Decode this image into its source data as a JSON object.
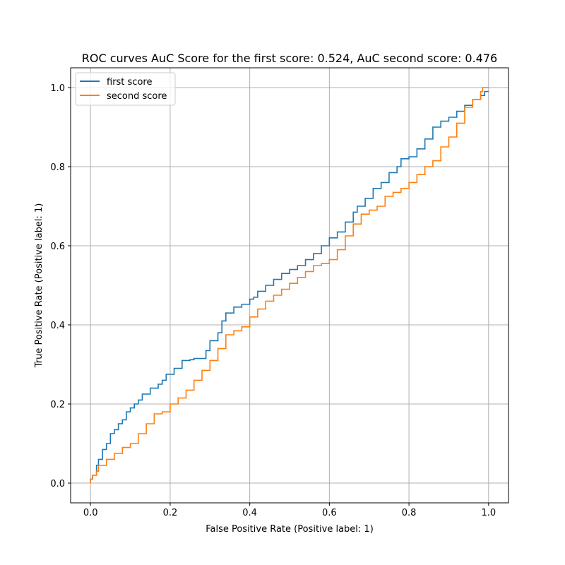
{
  "chart_data": {
    "type": "line",
    "title": "ROC curves AuC Score for the first score: 0.524, AuC second score: 0.476",
    "xlabel": "False Positive Rate (Positive label: 1)",
    "ylabel": "True Positive Rate (Positive label: 1)",
    "xlim": [
      -0.05,
      1.05
    ],
    "ylim": [
      -0.05,
      1.05
    ],
    "xticks": [
      0.0,
      0.2,
      0.4,
      0.6,
      0.8,
      1.0
    ],
    "yticks": [
      0.0,
      0.2,
      0.4,
      0.6,
      0.8,
      1.0
    ],
    "xtick_labels": [
      "0.0",
      "0.2",
      "0.4",
      "0.6",
      "0.8",
      "1.0"
    ],
    "ytick_labels": [
      "0.0",
      "0.2",
      "0.4",
      "0.6",
      "0.8",
      "1.0"
    ],
    "grid": true,
    "legend_position": "top-left",
    "series": [
      {
        "name": "first score",
        "color": "#1f77b4",
        "x": [
          0.0,
          0.005,
          0.015,
          0.02,
          0.03,
          0.04,
          0.05,
          0.06,
          0.07,
          0.08,
          0.09,
          0.1,
          0.11,
          0.12,
          0.13,
          0.15,
          0.17,
          0.18,
          0.19,
          0.21,
          0.23,
          0.25,
          0.26,
          0.29,
          0.3,
          0.32,
          0.33,
          0.34,
          0.36,
          0.38,
          0.4,
          0.41,
          0.42,
          0.44,
          0.46,
          0.48,
          0.5,
          0.52,
          0.54,
          0.56,
          0.58,
          0.6,
          0.62,
          0.64,
          0.66,
          0.67,
          0.69,
          0.71,
          0.73,
          0.75,
          0.77,
          0.78,
          0.8,
          0.82,
          0.84,
          0.86,
          0.88,
          0.9,
          0.92,
          0.94,
          0.96,
          0.98,
          0.99,
          1.0
        ],
        "y": [
          0.0,
          0.01,
          0.02,
          0.045,
          0.06,
          0.085,
          0.1,
          0.125,
          0.135,
          0.15,
          0.16,
          0.18,
          0.19,
          0.2,
          0.21,
          0.225,
          0.24,
          0.25,
          0.26,
          0.275,
          0.29,
          0.31,
          0.312,
          0.315,
          0.335,
          0.36,
          0.38,
          0.41,
          0.43,
          0.445,
          0.452,
          0.465,
          0.47,
          0.485,
          0.5,
          0.515,
          0.53,
          0.54,
          0.55,
          0.565,
          0.58,
          0.6,
          0.62,
          0.635,
          0.66,
          0.685,
          0.7,
          0.72,
          0.745,
          0.76,
          0.785,
          0.8,
          0.82,
          0.825,
          0.845,
          0.87,
          0.9,
          0.915,
          0.925,
          0.94,
          0.955,
          0.97,
          0.98,
          0.99
        ]
      },
      {
        "name": "second score",
        "color": "#ff7f0e",
        "x": [
          0.0,
          0.005,
          0.015,
          0.02,
          0.04,
          0.06,
          0.08,
          0.1,
          0.12,
          0.14,
          0.16,
          0.18,
          0.2,
          0.22,
          0.24,
          0.26,
          0.28,
          0.3,
          0.32,
          0.34,
          0.36,
          0.38,
          0.4,
          0.42,
          0.44,
          0.46,
          0.48,
          0.5,
          0.52,
          0.54,
          0.56,
          0.58,
          0.6,
          0.62,
          0.64,
          0.66,
          0.68,
          0.7,
          0.72,
          0.74,
          0.76,
          0.78,
          0.8,
          0.82,
          0.84,
          0.86,
          0.88,
          0.9,
          0.92,
          0.94,
          0.96,
          0.98,
          0.985,
          1.0
        ],
        "y": [
          0.0,
          0.01,
          0.02,
          0.03,
          0.045,
          0.06,
          0.075,
          0.09,
          0.1,
          0.125,
          0.15,
          0.175,
          0.18,
          0.2,
          0.215,
          0.235,
          0.26,
          0.285,
          0.31,
          0.34,
          0.375,
          0.385,
          0.395,
          0.42,
          0.44,
          0.46,
          0.475,
          0.49,
          0.505,
          0.52,
          0.535,
          0.55,
          0.555,
          0.565,
          0.59,
          0.625,
          0.655,
          0.68,
          0.69,
          0.7,
          0.725,
          0.735,
          0.745,
          0.76,
          0.78,
          0.8,
          0.815,
          0.85,
          0.875,
          0.91,
          0.95,
          0.97,
          0.99,
          1.0
        ]
      }
    ]
  }
}
